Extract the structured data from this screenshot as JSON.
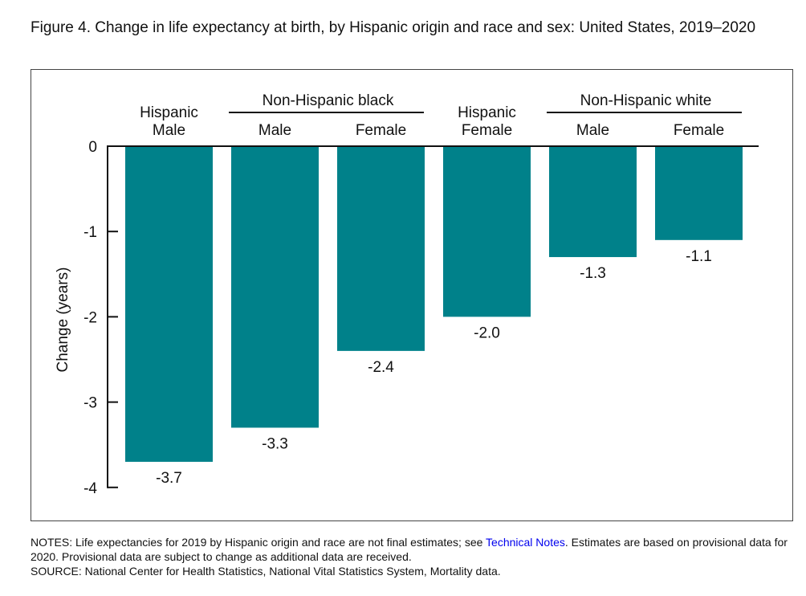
{
  "title": "Figure 4. Change in life expectancy at birth, by Hispanic origin and race and sex: United States, 2019–2020",
  "notes": {
    "prefix": "NOTES: Life expectancies for 2019 by Hispanic origin and race are not final estimates; see ",
    "link": "Technical Notes",
    "suffix": ". Estimates are based on provisional data for 2020. Provisional data are subject to change as additional data are received.",
    "source": "SOURCE: National Center for Health Statistics, National Vital Statistics System, Mortality data."
  },
  "chart_data": {
    "type": "bar",
    "title": "Figure 4. Change in life expectancy at birth, by Hispanic origin and race and sex: United States, 2019–2020",
    "ylabel": "Change (years)",
    "xlabel": "",
    "ylim": [
      -4,
      0
    ],
    "yticks": [
      "0",
      "-1",
      "-2",
      "-3",
      "-4"
    ],
    "groups": [
      {
        "label": "Non-Hispanic black",
        "members": [
          1,
          2
        ]
      },
      {
        "label": "Non-Hispanic white",
        "members": [
          4,
          5
        ]
      }
    ],
    "categories": [
      [
        "Hispanic",
        "Male"
      ],
      [
        "Male"
      ],
      [
        "Female"
      ],
      [
        "Hispanic",
        "Female"
      ],
      [
        "Male"
      ],
      [
        "Female"
      ]
    ],
    "values": [
      -3.7,
      -3.3,
      -2.4,
      -2.0,
      -1.3,
      -1.1
    ],
    "value_labels": [
      "-3.7",
      "-3.3",
      "-2.4",
      "-2.0",
      "-1.3",
      "-1.1"
    ],
    "color": "#00818a"
  }
}
